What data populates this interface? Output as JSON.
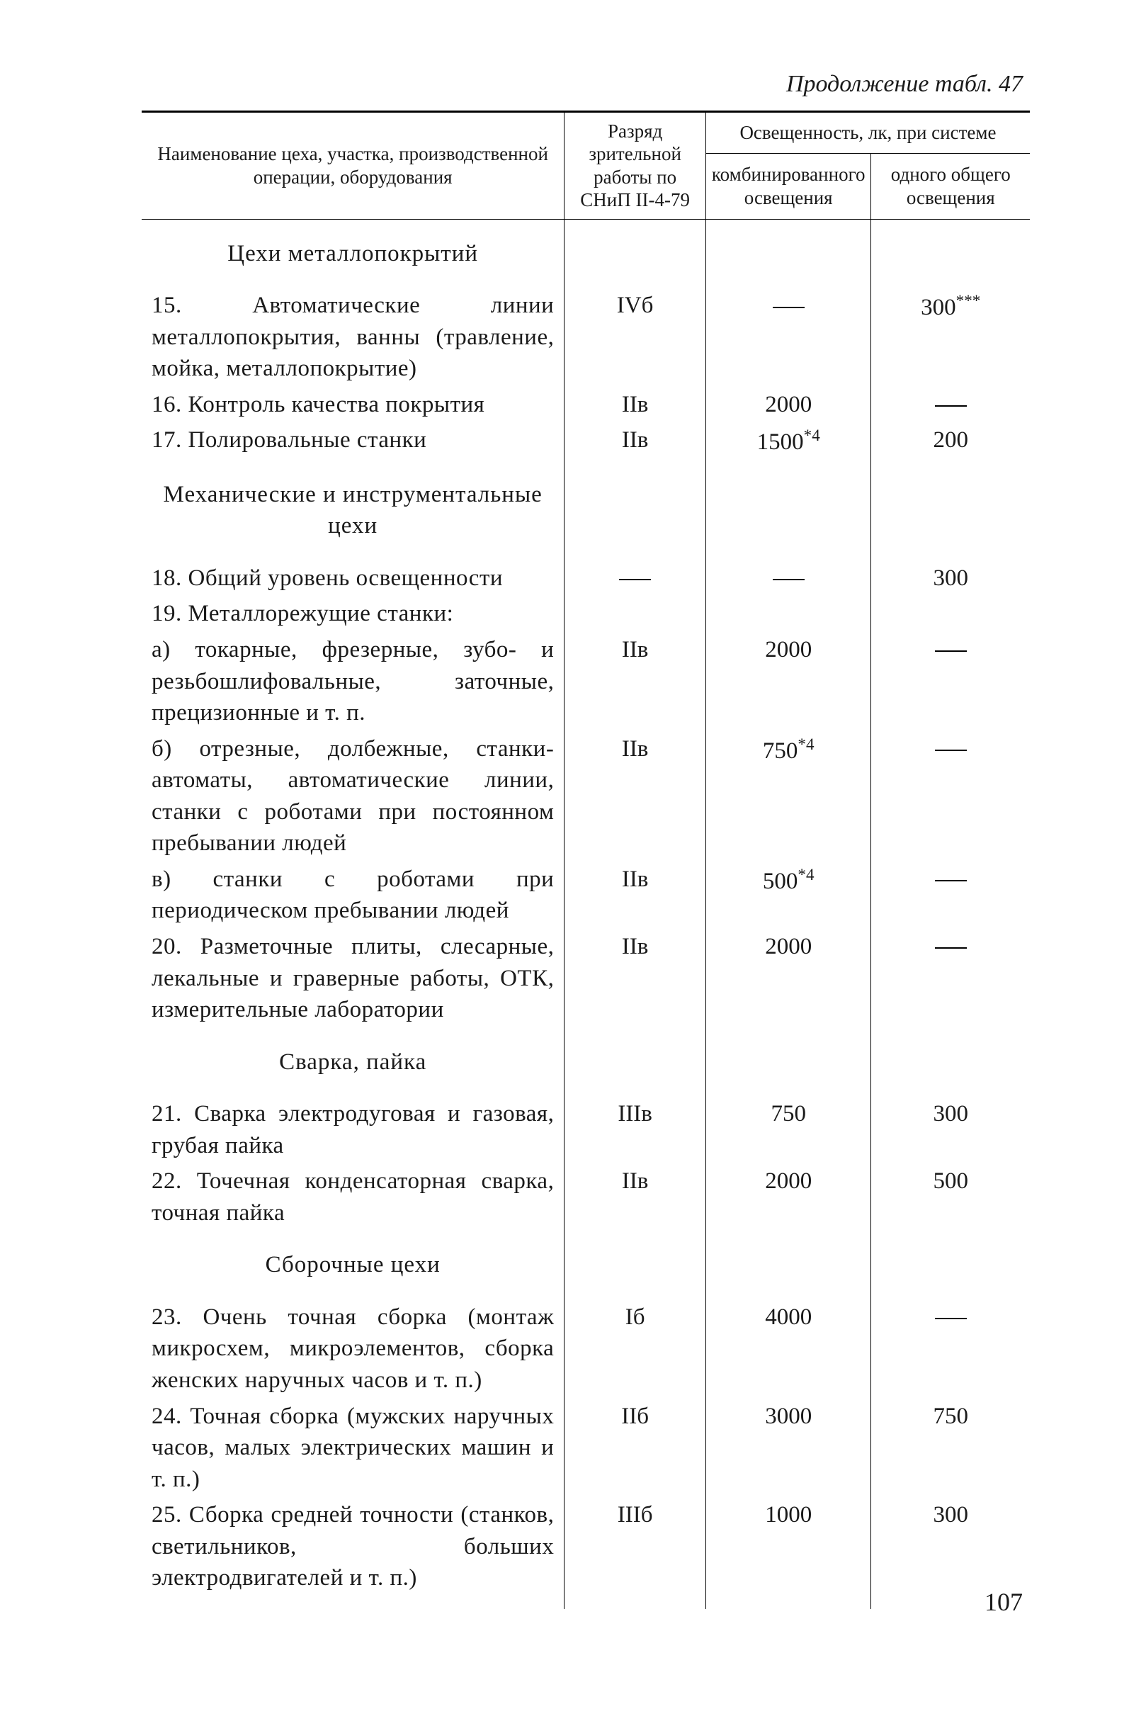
{
  "caption": "Продолжение табл. 47",
  "header": {
    "name": "Наименование цеха, участка, производственной операции, оборудования",
    "category": "Разряд зрительной работы по СНиП II-4-79",
    "illum_group": "Освещенность, лк, при системе",
    "combined": "комбинированного освещения",
    "general": "одного общего освещения"
  },
  "sections": [
    {
      "title": "Цехи металлопокрытий",
      "rows": [
        {
          "name": "15. Автоматические линии металлопокрытия, ванны (травление, мойка, металлопокрытие)",
          "cat": "IVб",
          "comb": "—",
          "gen": "300***"
        },
        {
          "name": "16. Контроль качества покрытия",
          "cat": "IIв",
          "comb": "2000",
          "gen": "—"
        },
        {
          "name": "17. Полировальные станки",
          "cat": "IIв",
          "comb": "1500*4",
          "gen": "200"
        }
      ]
    },
    {
      "title": "Механические и инструментальные цехи",
      "rows": [
        {
          "name": "18. Общий уровень освещенности",
          "cat": "—",
          "comb": "—",
          "gen": "300"
        },
        {
          "name": "19. Металлорежущие станки:",
          "cat": "",
          "comb": "",
          "gen": ""
        },
        {
          "name": "а) токарные, фрезерные, зубо- и резьбошлифовальные, заточные, прецизионные и т. п.",
          "cat": "IIв",
          "comb": "2000",
          "gen": "—"
        },
        {
          "name": "б) отрезные, долбежные, станки-автоматы, автоматические линии, станки с роботами при постоянном пребывании людей",
          "cat": "IIв",
          "comb": "750*4",
          "gen": "—"
        },
        {
          "name": "в) станки с роботами при периодическом пребывании людей",
          "cat": "IIв",
          "comb": "500*4",
          "gen": "—"
        },
        {
          "name": "20. Разметочные плиты, слесарные, лекальные и граверные работы, ОТК, измерительные лаборатории",
          "cat": "IIв",
          "comb": "2000",
          "gen": "—"
        }
      ]
    },
    {
      "title": "Сварка, пайка",
      "rows": [
        {
          "name": "21. Сварка электродуговая и газовая, грубая пайка",
          "cat": "IIIв",
          "comb": "750",
          "gen": "300"
        },
        {
          "name": "22. Точечная конденсаторная сварка, точная пайка",
          "cat": "IIв",
          "comb": "2000",
          "gen": "500"
        }
      ]
    },
    {
      "title": "Сборочные цехи",
      "rows": [
        {
          "name": "23. Очень точная сборка (монтаж микросхем, микроэлементов, сборка женских наручных часов и т. п.)",
          "cat": "Iб",
          "comb": "4000",
          "gen": "—"
        },
        {
          "name": "24. Точная сборка (мужских наручных часов, малых электрических машин и т. п.)",
          "cat": "IIб",
          "comb": "3000",
          "gen": "750"
        },
        {
          "name": "25. Сборка средней точности (станков, светильников, больших электродвигателей и т. п.)",
          "cat": "IIIб",
          "comb": "1000",
          "gen": "300"
        }
      ]
    }
  ],
  "page_number": "107"
}
